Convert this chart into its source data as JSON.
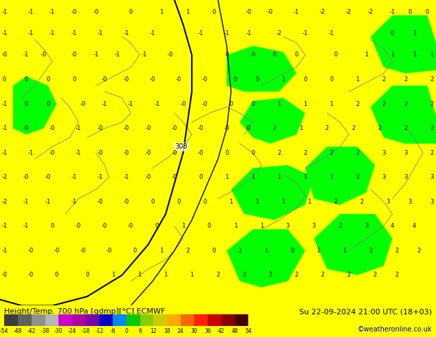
{
  "title_left": "Height/Temp. 700 hPa [gdmp][°C] ECMWF",
  "title_right": "Su 22-09-2024 21:00 UTC (18+03)",
  "credit": "©weatheronline.co.uk",
  "yellow_color": "#ffff00",
  "green_color": "#00ff00",
  "yellow_patch": "#ffff00",
  "credit_color": "#0000cc",
  "figsize": [
    6.34,
    4.9
  ],
  "dpi": 100,
  "cbar_colors": [
    "#3c3c3c",
    "#606060",
    "#909090",
    "#b4b4b4",
    "#cc00cc",
    "#aa00aa",
    "#7700aa",
    "#0000cc",
    "#0088ff",
    "#00cc00",
    "#88cc00",
    "#cccc00",
    "#ffaa00",
    "#ff6600",
    "#ff2200",
    "#cc0000",
    "#880000",
    "#440000"
  ],
  "cbar_labels": [
    "-54",
    "-48",
    "-42",
    "-38",
    "-30",
    "-24",
    "-18",
    "-12",
    "-6",
    "0",
    "6",
    "12",
    "18",
    "24",
    "30",
    "36",
    "42",
    "48",
    "54"
  ]
}
